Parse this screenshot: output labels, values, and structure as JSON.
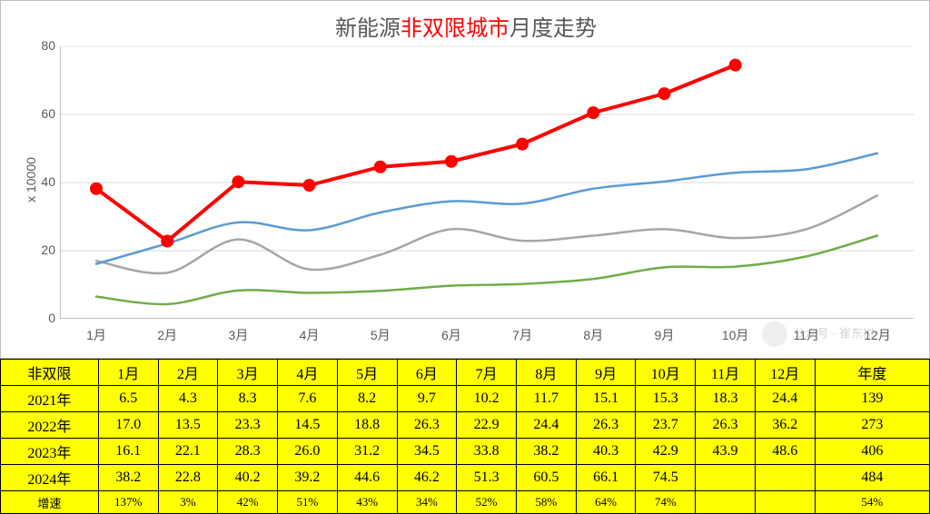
{
  "chart": {
    "type": "line",
    "title_parts": [
      "新能源",
      "非双限城市",
      "月度走势"
    ],
    "title_colors": [
      "#595959",
      "#ff0000",
      "#595959"
    ],
    "title_fontsize": 24,
    "y_axis_label": "x 10000",
    "ylim": [
      0,
      80
    ],
    "ytick_step": 20,
    "yticks": [
      0,
      20,
      40,
      60,
      80
    ],
    "categories": [
      "1月",
      "2月",
      "3月",
      "4月",
      "5月",
      "6月",
      "7月",
      "8月",
      "9月",
      "10月",
      "11月",
      "12月"
    ],
    "background_color": "#ffffff",
    "grid_color": "#d9d9d9",
    "axis_color": "#808080",
    "label_fontsize": 14,
    "label_color": "#595959",
    "series": [
      {
        "name": "2021年",
        "color": "#70ad47",
        "line_width": 2.5,
        "marker": "none",
        "values": [
          6.5,
          4.3,
          8.3,
          7.6,
          8.2,
          9.7,
          10.2,
          11.7,
          15.1,
          15.3,
          18.3,
          24.4
        ]
      },
      {
        "name": "2022年",
        "color": "#a6a6a6",
        "line_width": 2.5,
        "marker": "none",
        "values": [
          17.0,
          13.5,
          23.3,
          14.5,
          18.8,
          26.3,
          22.9,
          24.4,
          26.3,
          23.7,
          26.3,
          36.2
        ]
      },
      {
        "name": "2023年",
        "color": "#5b9bd5",
        "line_width": 2.5,
        "marker": "none",
        "values": [
          16.1,
          22.1,
          28.3,
          26.0,
          31.2,
          34.5,
          33.8,
          38.2,
          40.3,
          42.9,
          43.9,
          48.6
        ]
      },
      {
        "name": "2024年",
        "color": "#ff0000",
        "line_width": 4,
        "marker": "circle",
        "marker_size": 7,
        "values": [
          38.2,
          22.8,
          40.2,
          39.2,
          44.6,
          46.2,
          51.3,
          60.5,
          66.1,
          74.5
        ]
      }
    ]
  },
  "table": {
    "header_bg": "#ffff00",
    "cell_bg": "#ffff00",
    "border_color": "#000000",
    "fontsize": 16,
    "growth_fontsize": 13,
    "col_widths_pct": [
      10.5,
      6.4,
      6.4,
      6.4,
      6.4,
      6.4,
      6.4,
      6.4,
      6.4,
      6.4,
      6.4,
      6.4,
      6.4,
      12.3
    ],
    "columns": [
      "非双限",
      "1月",
      "2月",
      "3月",
      "4月",
      "5月",
      "6月",
      "7月",
      "8月",
      "9月",
      "10月",
      "11月",
      "12月",
      "年度"
    ],
    "rows": [
      {
        "label": "2021年",
        "cells": [
          "6.5",
          "4.3",
          "8.3",
          "7.6",
          "8.2",
          "9.7",
          "10.2",
          "11.7",
          "15.1",
          "15.3",
          "18.3",
          "24.4",
          "139"
        ]
      },
      {
        "label": "2022年",
        "cells": [
          "17.0",
          "13.5",
          "23.3",
          "14.5",
          "18.8",
          "26.3",
          "22.9",
          "24.4",
          "26.3",
          "23.7",
          "26.3",
          "36.2",
          "273"
        ]
      },
      {
        "label": "2023年",
        "cells": [
          "16.1",
          "22.1",
          "28.3",
          "26.0",
          "31.2",
          "34.5",
          "33.8",
          "38.2",
          "40.3",
          "42.9",
          "43.9",
          "48.6",
          "406"
        ]
      },
      {
        "label": "2024年",
        "cells": [
          "38.2",
          "22.8",
          "40.2",
          "39.2",
          "44.6",
          "46.2",
          "51.3",
          "60.5",
          "66.1",
          "74.5",
          "",
          "",
          "484"
        ]
      },
      {
        "label": "增速",
        "small": true,
        "cells": [
          "137%",
          "3%",
          "42%",
          "51%",
          "43%",
          "34%",
          "52%",
          "58%",
          "64%",
          "74%",
          "",
          "",
          "54%"
        ]
      }
    ]
  },
  "watermark": {
    "text": "公众号 · 崔东树"
  }
}
